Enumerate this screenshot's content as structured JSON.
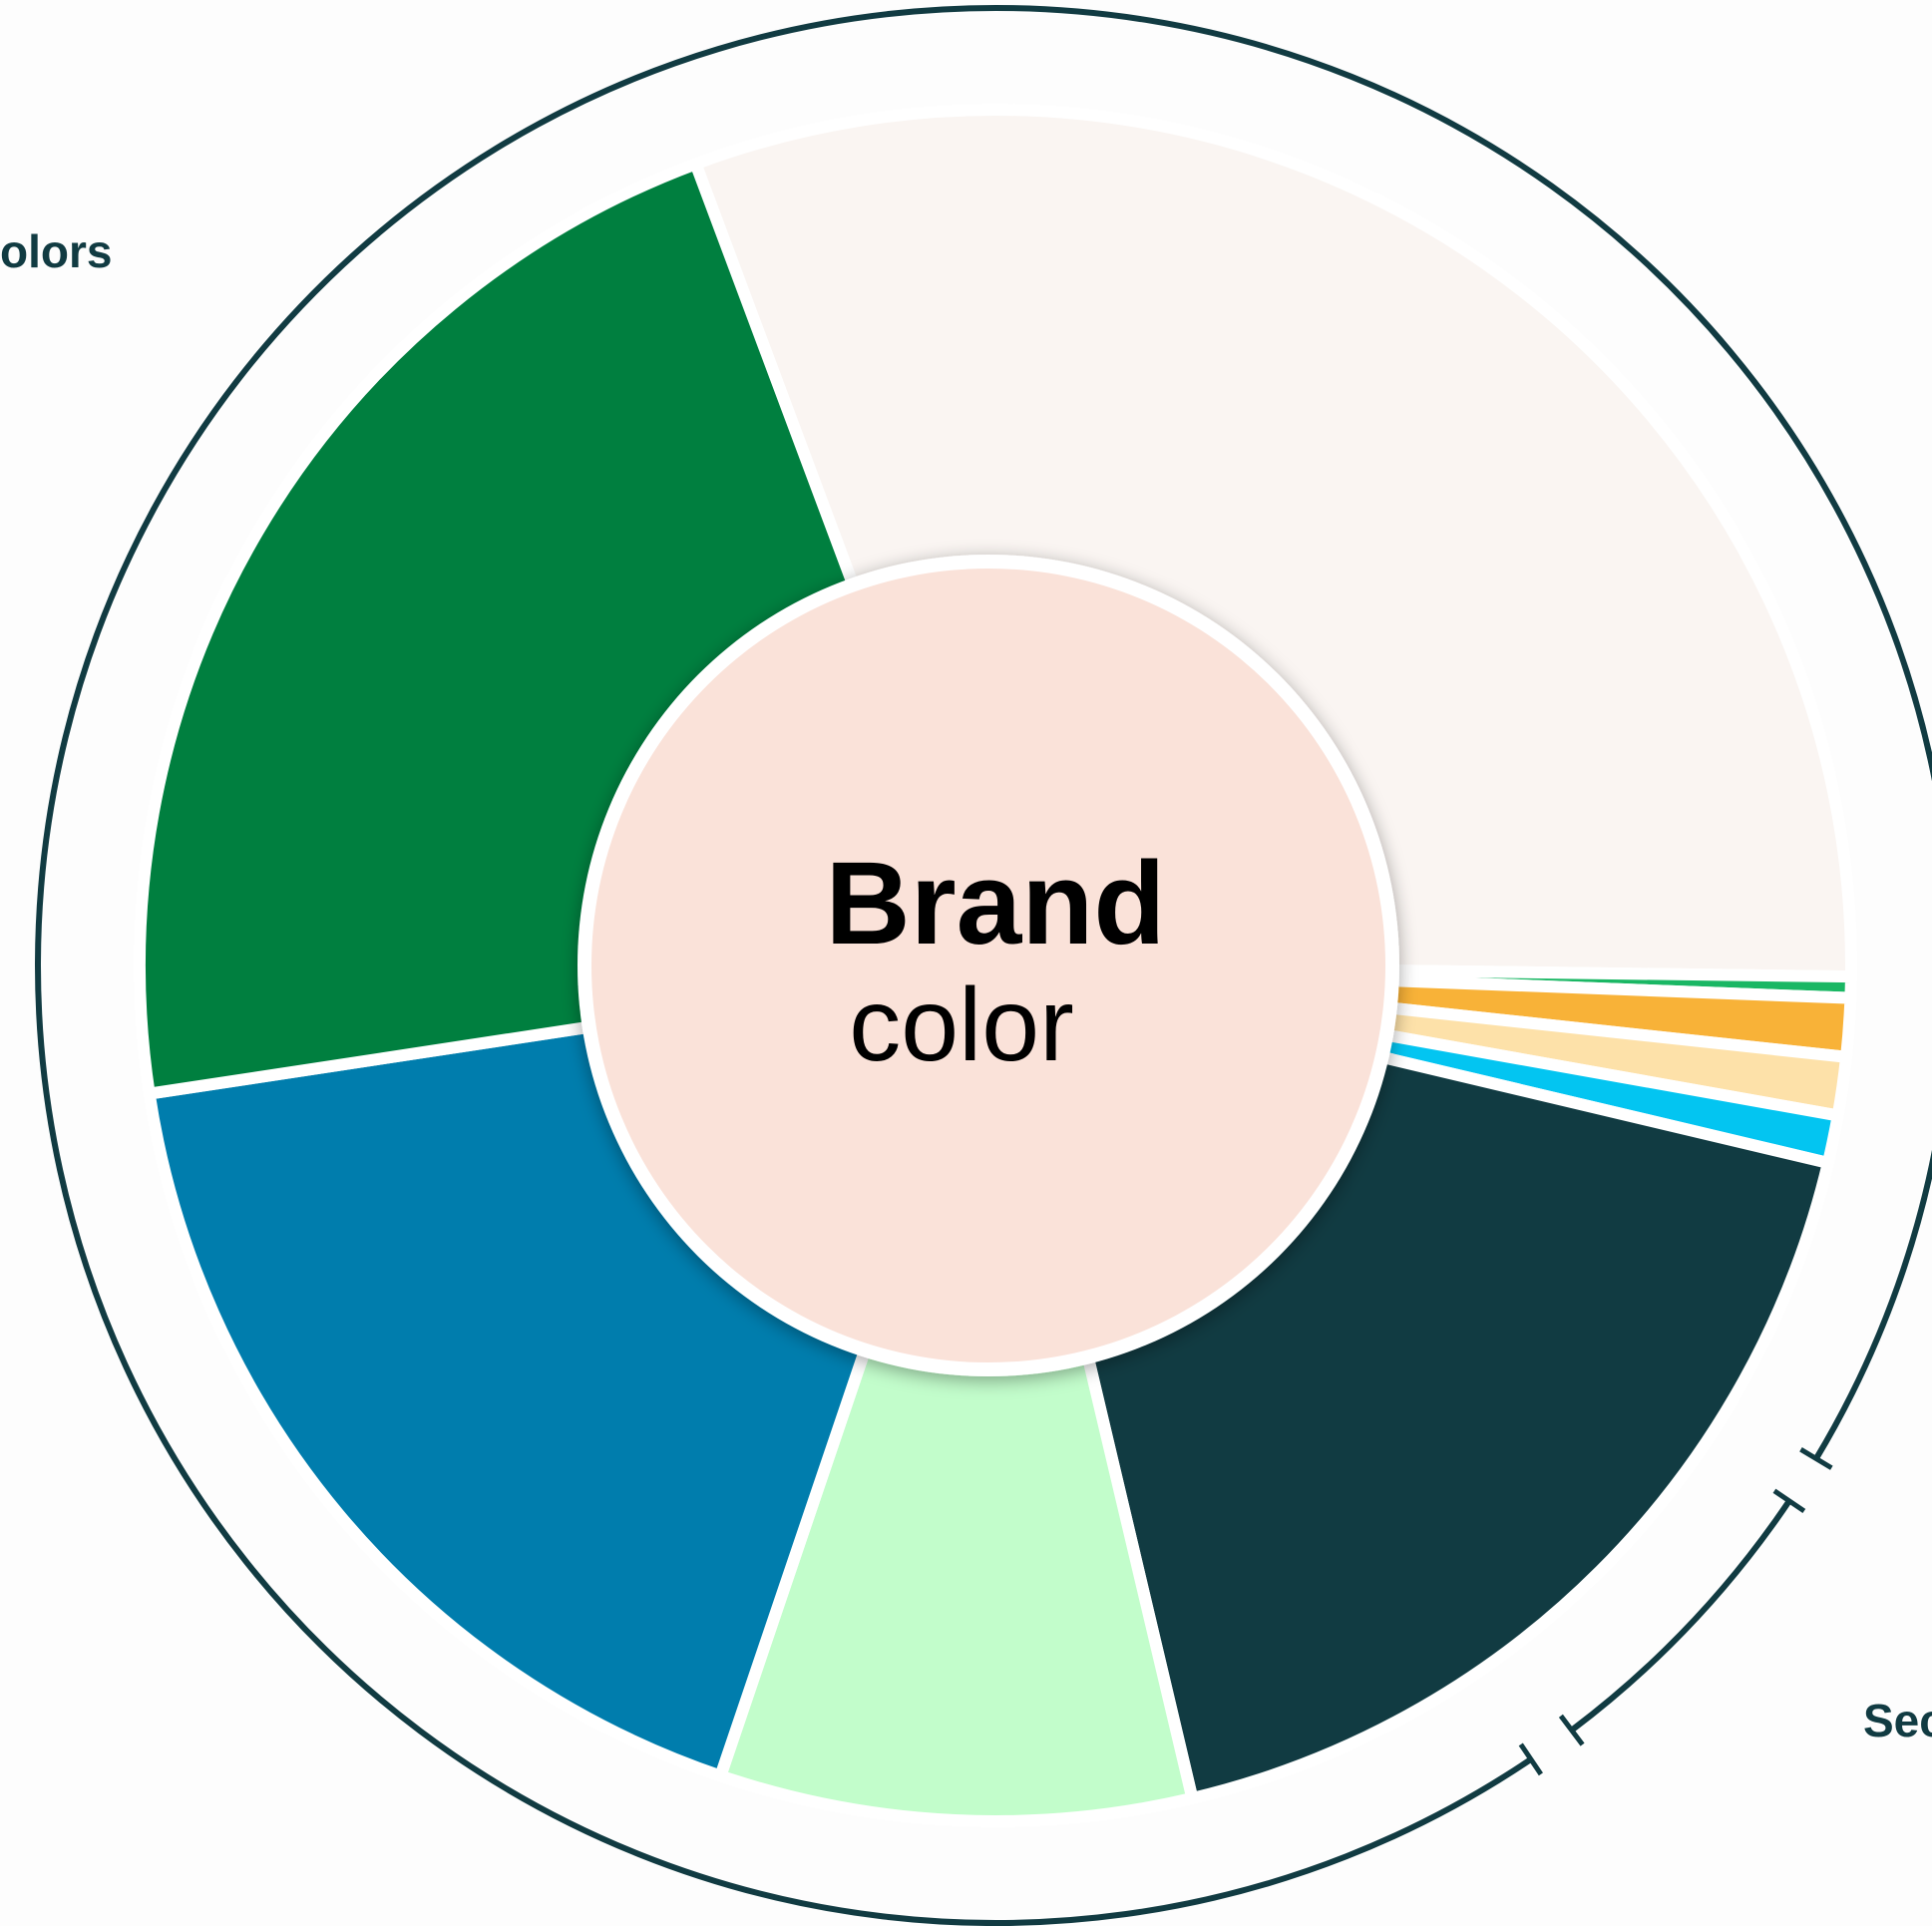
{
  "center": {
    "title": "Brand",
    "subtitle": "color",
    "fill": "#fae2d9"
  },
  "group_labels": {
    "left_fragment": "olors",
    "right_fragment": "Sec"
  },
  "colors": {
    "ring": "#113b42",
    "separator": "#ffffff",
    "background": "#fdfdfd"
  },
  "chart_data": {
    "type": "pie",
    "segments": [
      {
        "fill": "#faf5f2",
        "percent": 30.9
      },
      {
        "fill": "#1ab764",
        "percent": 0.4
      },
      {
        "fill": "#f8b238",
        "percent": 1.1
      },
      {
        "fill": "#fde1a9",
        "percent": 1.1
      },
      {
        "fill": "#03c5f1",
        "percent": 0.9
      },
      {
        "fill": "#113b42",
        "percent": 17.6
      },
      {
        "fill": "#c2fdcb",
        "percent": 8.9
      },
      {
        "fill": "#007dad",
        "percent": 17.4
      },
      {
        "fill": "#007f3f",
        "percent": 21.7
      }
    ]
  }
}
